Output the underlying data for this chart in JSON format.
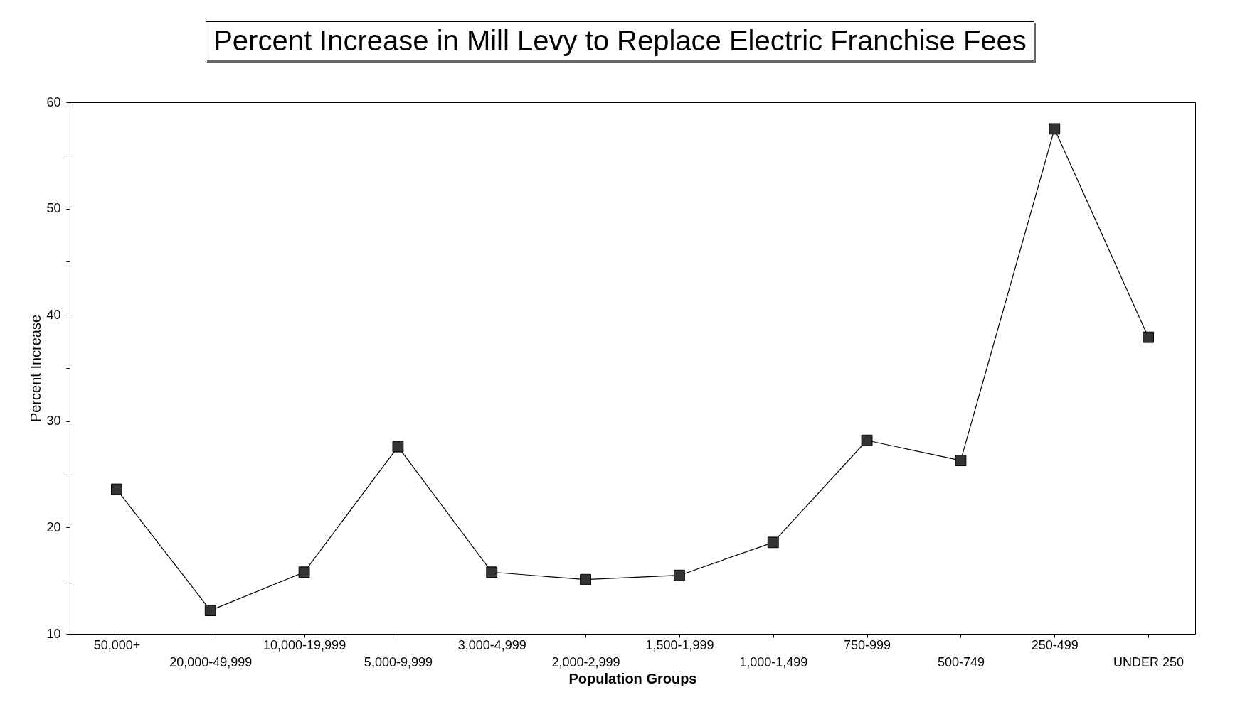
{
  "chart_data": {
    "type": "line",
    "title": "Percent Increase in Mill Levy to Replace Electric Franchise Fees",
    "xlabel": "Population Groups",
    "ylabel": "Percent Increase",
    "categories": [
      "50,000+",
      "20,000-49,999",
      "10,000-19,999",
      "5,000-9,999",
      "3,000-4,999",
      "2,000-2,999",
      "1,500-1,999",
      "1,000-1,499",
      "750-999",
      "500-749",
      "250-499",
      "UNDER 250"
    ],
    "series": [
      {
        "color": "#333333",
        "values": [
          23.6,
          12.2,
          15.8,
          27.6,
          15.8,
          15.1,
          15.5,
          18.6,
          28.2,
          26.3,
          57.5,
          37.9
        ]
      }
    ],
    "ylim": [
      10,
      60
    ],
    "yticks": [
      10,
      {
        "value": 15,
        "label": null
      },
      20,
      {
        "value": 25,
        "label": null
      },
      30,
      {
        "value": 35,
        "label": null
      },
      40,
      {
        "value": 45,
        "label": null
      },
      50,
      {
        "value": 55,
        "label": null
      },
      60
    ],
    "grid": false,
    "marker": "square",
    "line_style": "solid"
  }
}
